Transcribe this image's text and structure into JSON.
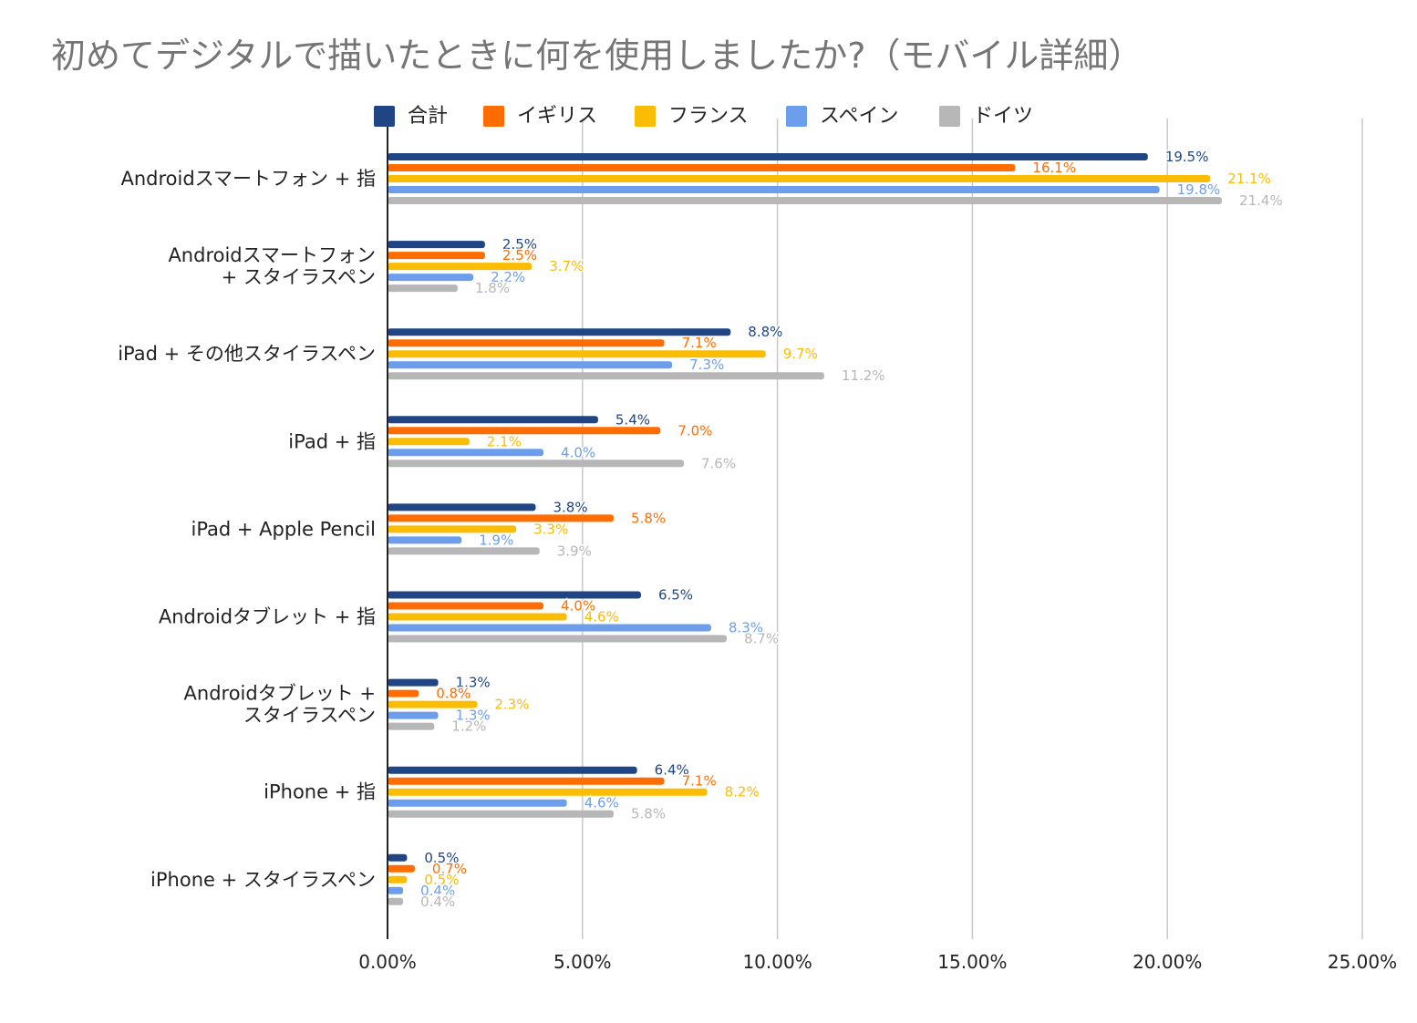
{
  "colors": {
    "合計": "#1f4584",
    "イギリス": "#ff6d01",
    "フランス": "#fbbc04",
    "スペイン": "#6d9eeb",
    "ドイツ": "#b7b7b7",
    "grid": "#c8c8c8",
    "axis": "#222222",
    "text": "#222222",
    "title": "#757575"
  },
  "chart_data": {
    "type": "bar",
    "orientation": "horizontal",
    "title": "初めてデジタルで描いたときに何を使用しましたか?（モバイル詳細）",
    "xlabel": "",
    "ylabel": "",
    "xlim": [
      0,
      25
    ],
    "x_ticks": [
      "0.00%",
      "5.00%",
      "10.00%",
      "15.00%",
      "20.00%",
      "25.00%"
    ],
    "grid": true,
    "legend_position": "top",
    "categories": [
      [
        "Androidスマートフォン + 指"
      ],
      [
        "Androidスマートフォン",
        "+ スタイラスペン"
      ],
      [
        "iPad + その他スタイラスペン"
      ],
      [
        "iPad + 指"
      ],
      [
        "iPad + Apple Pencil"
      ],
      [
        "Androidタブレット + 指"
      ],
      [
        "Androidタブレット +",
        "スタイラスペン"
      ],
      [
        "iPhone +  指"
      ],
      [
        "iPhone + スタイラスペン"
      ]
    ],
    "series": [
      {
        "name": "合計",
        "values": [
          19.5,
          2.5,
          8.8,
          5.4,
          3.8,
          6.5,
          1.3,
          6.4,
          0.5
        ],
        "labels": [
          "19.5%",
          "2.5%",
          "8.8%",
          "5.4%",
          "3.8%",
          "6.5%",
          "1.3%",
          "6.4%",
          "0.5%"
        ]
      },
      {
        "name": "イギリス",
        "values": [
          16.1,
          2.5,
          7.1,
          7.0,
          5.8,
          4.0,
          0.8,
          7.1,
          0.7
        ],
        "labels": [
          "16.1%",
          "2.5%",
          "7.1%",
          "7.0%",
          "5.8%",
          "4.0%",
          "0.8%",
          "7.1%",
          "0.7%"
        ]
      },
      {
        "name": "フランス",
        "values": [
          21.1,
          3.7,
          9.7,
          2.1,
          3.3,
          4.6,
          2.3,
          8.2,
          0.5
        ],
        "labels": [
          "21.1%",
          "3.7%",
          "9.7%",
          "2.1%",
          "3.3%",
          "4.6%",
          "2.3%",
          "8.2%",
          "0.5%"
        ]
      },
      {
        "name": "スペイン",
        "values": [
          19.8,
          2.2,
          7.3,
          4.0,
          1.9,
          8.3,
          1.3,
          4.6,
          0.4
        ],
        "labels": [
          "19.8%",
          "2.2%",
          "7.3%",
          "4.0%",
          "1.9%",
          "8.3%",
          "1.3%",
          "4.6%",
          "0.4%"
        ]
      },
      {
        "name": "ドイツ",
        "values": [
          21.4,
          1.8,
          11.2,
          7.6,
          3.9,
          8.7,
          1.2,
          5.8,
          0.4
        ],
        "labels": [
          "21.4%",
          "1.8%",
          "11.2%",
          "7.6%",
          "3.9%",
          "8.7%",
          "1.2%",
          "5.8%",
          "0.4%"
        ]
      }
    ]
  }
}
